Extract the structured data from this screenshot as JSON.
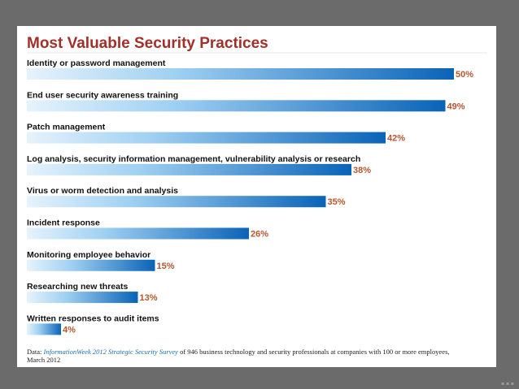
{
  "chart_data": {
    "type": "bar",
    "orientation": "horizontal",
    "title": "Most Valuable Security Practices",
    "categories": [
      "Identity or password management",
      "End user security awareness training",
      "Patch management",
      "Log analysis, security information management, vulnerability analysis or research",
      "Virus or worm detection and analysis",
      "Incident response",
      "Monitoring employee behavior",
      "Researching new threats",
      "Written responses to audit items"
    ],
    "values": [
      50,
      49,
      42,
      38,
      35,
      26,
      15,
      13,
      4
    ],
    "value_labels": [
      "50%",
      "49%",
      "42%",
      "38%",
      "35%",
      "26%",
      "15%",
      "13%",
      "4%"
    ],
    "unit": "%",
    "xlim": [
      0,
      50
    ],
    "grid": false,
    "legend": "none"
  },
  "footnote": {
    "prefix": "Data: ",
    "source": "InformationWeek 2012 Strategic Security Survey",
    "rest": " of 946 business technology and security professionals at companies with 100 or more employees, March 2012"
  },
  "colors": {
    "bar_light": "#e6f3fc",
    "bar_dark": "#0a63b7",
    "title": "#a0302a",
    "value_text": "#b5562d",
    "slide_bg": "#6b6b6b"
  }
}
